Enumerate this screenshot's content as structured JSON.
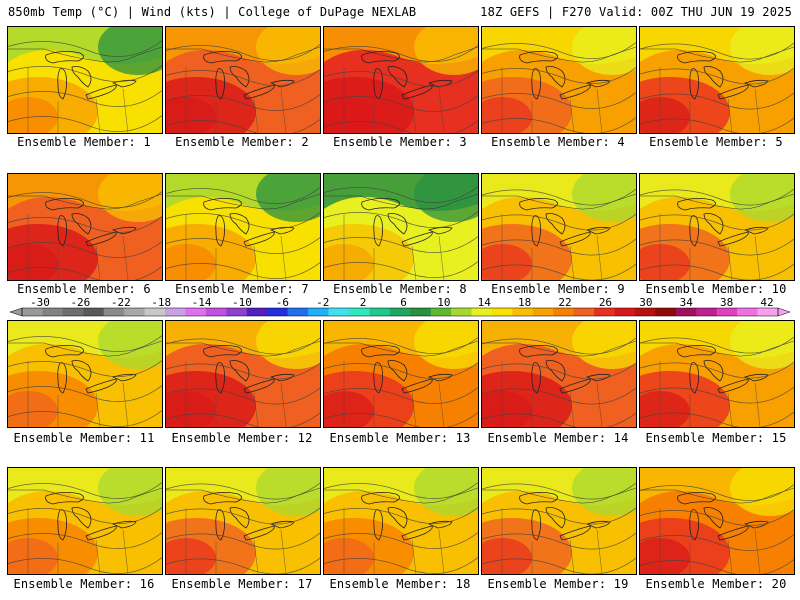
{
  "header": {
    "left": "850mb Temp (°C) | Wind (kts) | College of DuPage NEXLAB",
    "right": "18Z GEFS | F270 Valid: 00Z THU JUN 19 2025"
  },
  "colorbar": {
    "labels": [
      "-30",
      "-26",
      "-22",
      "-18",
      "-14",
      "-10",
      "-6",
      "-2",
      "2",
      "6",
      "10",
      "14",
      "18",
      "22",
      "26",
      "30",
      "34",
      "38",
      "42"
    ],
    "colors": [
      "#9a9a9a",
      "#828282",
      "#6e6e6e",
      "#5a5a5a",
      "#8a8a8a",
      "#a8a8a8",
      "#c8c8c8",
      "#c8a0e6",
      "#e070f0",
      "#c050e0",
      "#9040d0",
      "#5020c0",
      "#2030e0",
      "#2070f0",
      "#20b0f8",
      "#40e0f0",
      "#30e8c0",
      "#20c890",
      "#20a860",
      "#2a9040",
      "#60b830",
      "#a8d830",
      "#e8f020",
      "#f8e000",
      "#f8c000",
      "#f8a000",
      "#f88000",
      "#f06020",
      "#e83020",
      "#d81818",
      "#b81010",
      "#900808",
      "#a01060",
      "#c02090",
      "#e040c0",
      "#f070e0",
      "#f8a0f0"
    ]
  },
  "members": [
    {
      "label": "Ensemble Member: 1",
      "warmth": 0.45
    },
    {
      "label": "Ensemble Member: 2",
      "warmth": 0.85
    },
    {
      "label": "Ensemble Member: 3",
      "warmth": 0.95
    },
    {
      "label": "Ensemble Member: 4",
      "warmth": 0.65
    },
    {
      "label": "Ensemble Member: 5",
      "warmth": 0.7
    },
    {
      "label": "Ensemble Member: 6",
      "warmth": 0.85
    },
    {
      "label": "Ensemble Member: 7",
      "warmth": 0.45
    },
    {
      "label": "Ensemble Member: 8",
      "warmth": 0.35
    },
    {
      "label": "Ensemble Member: 9",
      "warmth": 0.6
    },
    {
      "label": "Ensemble Member: 10",
      "warmth": 0.6
    },
    {
      "label": "Ensemble Member: 11",
      "warmth": 0.55
    },
    {
      "label": "Ensemble Member: 12",
      "warmth": 0.8
    },
    {
      "label": "Ensemble Member: 13",
      "warmth": 0.75
    },
    {
      "label": "Ensemble Member: 14",
      "warmth": 0.8
    },
    {
      "label": "Ensemble Member: 15",
      "warmth": 0.7
    },
    {
      "label": "Ensemble Member: 16",
      "warmth": 0.55
    },
    {
      "label": "Ensemble Member: 17",
      "warmth": 0.6
    },
    {
      "label": "Ensemble Member: 18",
      "warmth": 0.55
    },
    {
      "label": "Ensemble Member: 19",
      "warmth": 0.6
    },
    {
      "label": "Ensemble Member: 20",
      "warmth": 0.75
    }
  ]
}
